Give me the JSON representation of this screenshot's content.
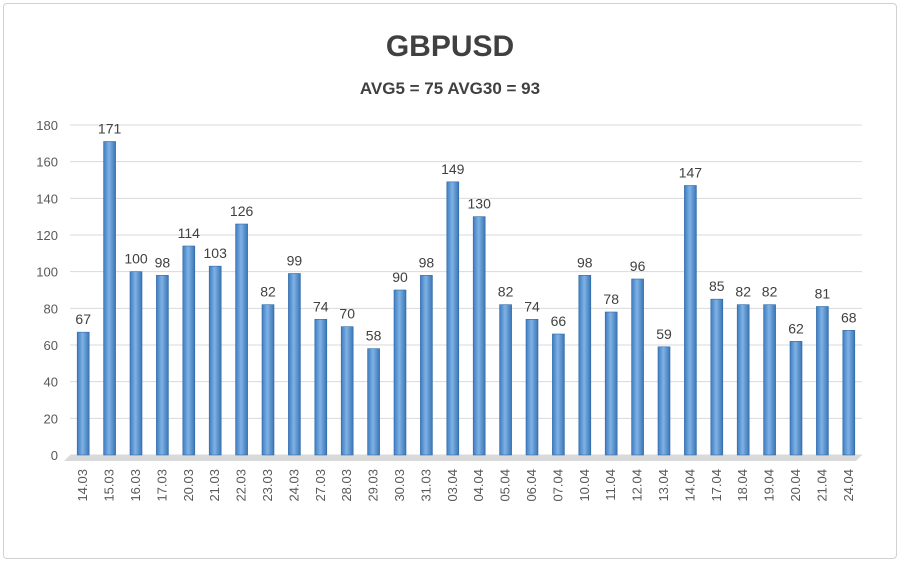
{
  "chart_data": {
    "type": "bar",
    "title": "GBPUSD",
    "subtitle": "AVG5 = 75 AVG30 = 93",
    "xlabel": "",
    "ylabel": "",
    "ylim": [
      0,
      180
    ],
    "yticks": [
      0,
      20,
      40,
      60,
      80,
      100,
      120,
      140,
      160,
      180
    ],
    "grid": true,
    "legend": "none",
    "bar_color": "#5b9bd5",
    "categories": [
      "14.03",
      "15.03",
      "16.03",
      "17.03",
      "20.03",
      "21.03",
      "22.03",
      "23.03",
      "24.03",
      "27.03",
      "28.03",
      "29.03",
      "30.03",
      "31.03",
      "03.04",
      "04.04",
      "05.04",
      "06.04",
      "07.04",
      "10.04",
      "11.04",
      "12.04",
      "13.04",
      "14.04",
      "17.04",
      "18.04",
      "19.04",
      "20.04",
      "21.04",
      "24.04"
    ],
    "values": [
      67,
      171,
      100,
      98,
      114,
      103,
      126,
      82,
      99,
      74,
      70,
      58,
      90,
      98,
      149,
      130,
      82,
      74,
      66,
      98,
      78,
      96,
      59,
      147,
      85,
      82,
      82,
      62,
      81,
      68
    ]
  }
}
